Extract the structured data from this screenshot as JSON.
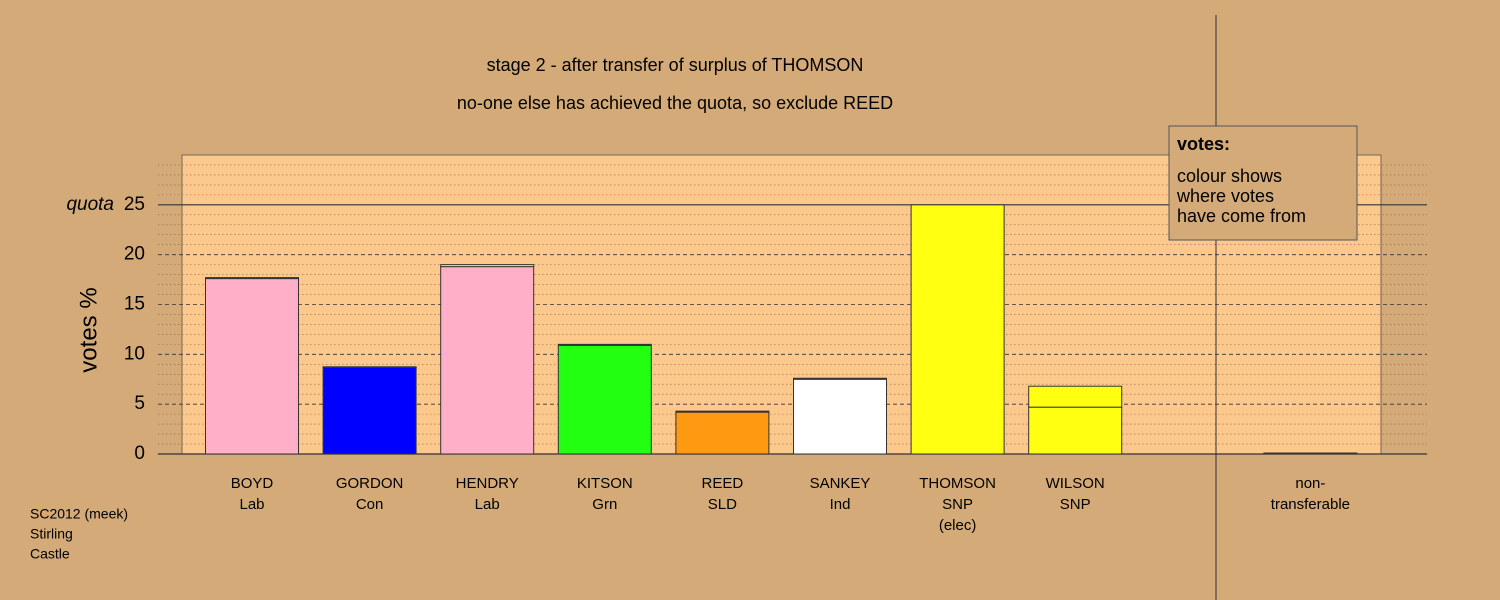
{
  "chart_data": {
    "type": "stacked-bar",
    "title": "stage 2 - after transfer of surplus of THOMSON",
    "subtitle": "no-one else has achieved the quota, so exclude REED",
    "y_label": "votes %",
    "quota_label": "quota",
    "quota": 25,
    "categories": [
      [
        "BOYD",
        "Lab"
      ],
      [
        "GORDON",
        "Con"
      ],
      [
        "HENDRY",
        "Lab"
      ],
      [
        "KITSON",
        "Grn"
      ],
      [
        "REED",
        "SLD"
      ],
      [
        "SANKEY",
        "Ind"
      ],
      [
        "THOMSON",
        "SNP",
        "(elec)"
      ],
      [
        "WILSON",
        "SNP"
      ],
      null,
      [
        "non-",
        "transferable"
      ]
    ],
    "values": [
      17.6,
      8.7,
      18.8,
      10.9,
      4.2,
      7.5,
      25,
      4.7,
      null,
      0
    ],
    "colors": [
      "#ffb0c8",
      "#0000ff",
      "#ffb0c8",
      "#22ff11",
      "#ff9911",
      "#ffffff",
      "#ffff11",
      "#ffff11",
      null,
      "#aaaaaa"
    ],
    "transfer_values": [
      0.1,
      0.05,
      0.2,
      0.1,
      0.1,
      0.1,
      0,
      2.1,
      null,
      0.1
    ],
    "transfer_color": "#ffff11",
    "ylim": [
      0,
      30
    ],
    "yticks": [
      0,
      5,
      10,
      15,
      20,
      25
    ],
    "legend": {
      "title": "votes:",
      "lines": [
        "colour shows",
        "where votes",
        "have come from"
      ]
    },
    "footer": [
      "SC2012 (meek)",
      "Stirling",
      "Castle"
    ]
  }
}
